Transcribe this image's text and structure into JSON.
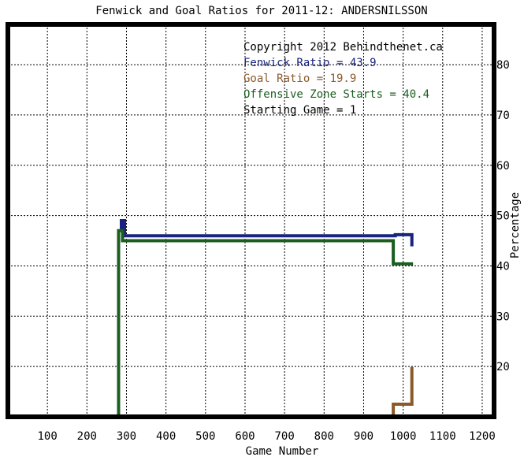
{
  "chart_data": {
    "type": "line",
    "title": "Fenwick and Goal Ratios for 2011-12: ANDERSNILSSON",
    "xlabel": "Game Number",
    "ylabel": "Percentage",
    "xlim": [
      0,
      1230
    ],
    "ylim": [
      10,
      88
    ],
    "x_ticks": [
      100,
      200,
      300,
      400,
      500,
      600,
      700,
      800,
      900,
      1000,
      1100,
      1200
    ],
    "y_ticks": [
      20,
      30,
      40,
      50,
      60,
      70,
      80
    ],
    "grid": true,
    "legend_position": "top-right",
    "legend": [
      {
        "text": "Copyright 2012 Behindthenet.ca",
        "color": "#000000"
      },
      {
        "text": "Fenwick Ratio = 43.9",
        "color": "#1a237e"
      },
      {
        "text": "Goal Ratio = 19.9",
        "color": "#8b5a2b"
      },
      {
        "text": "Offensive Zone Starts = 40.4",
        "color": "#1b5e20"
      },
      {
        "text": "Starting Game = 1",
        "color": "#000000"
      }
    ],
    "series": [
      {
        "color": "#1a237e",
        "points": [
          [
            287,
            47
          ],
          [
            287,
            49
          ],
          [
            295,
            49
          ],
          [
            295,
            46
          ],
          [
            980,
            46
          ],
          [
            980,
            46.2
          ],
          [
            1022,
            46.2
          ],
          [
            1022,
            43.9
          ]
        ]
      },
      {
        "color": "#8b5a2b",
        "points": [
          [
            975,
            10
          ],
          [
            975,
            12.5
          ],
          [
            1022,
            12.5
          ],
          [
            1022,
            19.9
          ]
        ]
      },
      {
        "color": "#1b5e20",
        "points": [
          [
            280,
            10
          ],
          [
            280,
            47
          ],
          [
            290,
            47
          ],
          [
            290,
            45
          ],
          [
            975,
            45
          ],
          [
            975,
            40.4
          ],
          [
            1025,
            40.4
          ]
        ]
      }
    ]
  }
}
